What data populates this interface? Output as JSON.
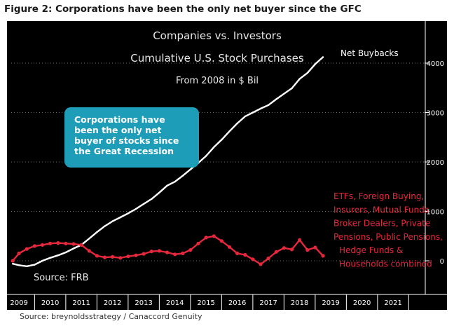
{
  "figure_title": "Figure 2: Corporations have been the only net buyer since the GFC",
  "source_note": "Source: breynoldsstrategy / Canaccord Genuity",
  "callout": {
    "lines": [
      "Corporations have",
      "been the only net",
      "buyer of stocks since",
      "the Great Recession"
    ],
    "color": "#1e9db8"
  },
  "chart_data": {
    "type": "line",
    "title": "Companies vs. Investors",
    "subtitle": "Cumulative U.S. Stock Purchases",
    "subtitle2": "From 2008 in $ Bil",
    "source_label": "Source: FRB",
    "x_ticks": [
      "2009",
      "2010",
      "2011",
      "2012",
      "2013",
      "2014",
      "2015",
      "2016",
      "2017",
      "2018",
      "2019",
      "2020",
      "2021"
    ],
    "y_ticks": [
      0,
      1000,
      2000,
      3000,
      4000
    ],
    "xlim": [
      2008.75,
      2021.8
    ],
    "ylim": [
      -550,
      4400
    ],
    "background": "#000000",
    "series": [
      {
        "name": "Net Buybacks",
        "color": "#ffffff",
        "x": [
          2008.8,
          2009.0,
          2009.25,
          2009.5,
          2009.75,
          2010.0,
          2010.25,
          2010.5,
          2010.75,
          2011.0,
          2011.25,
          2011.5,
          2011.75,
          2012.0,
          2012.25,
          2012.5,
          2012.75,
          2013.0,
          2013.25,
          2013.5,
          2013.75,
          2014.0,
          2014.25,
          2014.5,
          2014.75,
          2015.0,
          2015.25,
          2015.5,
          2015.75,
          2016.0,
          2016.25,
          2016.5,
          2016.75,
          2017.0,
          2017.25,
          2017.5,
          2017.75,
          2018.0,
          2018.25,
          2018.5,
          2018.75
        ],
        "y": [
          -60,
          -90,
          -110,
          -80,
          0,
          60,
          110,
          170,
          250,
          320,
          450,
          580,
          700,
          800,
          880,
          960,
          1050,
          1150,
          1250,
          1380,
          1520,
          1600,
          1720,
          1850,
          1980,
          2120,
          2300,
          2450,
          2620,
          2780,
          2920,
          3000,
          3080,
          3150,
          3270,
          3380,
          3490,
          3680,
          3800,
          3980,
          4120
        ]
      },
      {
        "name": "ETFs, Foreign Buying, Insurers, Mutual Funds Broker Dealers, Private Pensions, Public Pensions, Hedge Funds & Households combined",
        "label_lines": [
          "ETFs, Foreign Buying,",
          "Insurers, Mutual Funds",
          "Broker Dealers, Private",
          "Pensions, Public Pensions,",
          "Hedge Funds &",
          "Households combined"
        ],
        "color": "#e6283c",
        "x": [
          2008.8,
          2009.0,
          2009.25,
          2009.5,
          2009.75,
          2010.0,
          2010.25,
          2010.5,
          2010.75,
          2011.0,
          2011.25,
          2011.5,
          2011.75,
          2012.0,
          2012.25,
          2012.5,
          2012.75,
          2013.0,
          2013.25,
          2013.5,
          2013.75,
          2014.0,
          2014.25,
          2014.5,
          2014.75,
          2015.0,
          2015.25,
          2015.5,
          2015.75,
          2016.0,
          2016.25,
          2016.5,
          2016.75,
          2017.0,
          2017.25,
          2017.5,
          2017.75,
          2018.0,
          2018.25,
          2018.5,
          2018.75
        ],
        "y": [
          0,
          150,
          240,
          300,
          320,
          350,
          360,
          350,
          340,
          320,
          200,
          100,
          70,
          80,
          60,
          90,
          110,
          140,
          190,
          200,
          170,
          130,
          150,
          220,
          350,
          470,
          500,
          400,
          280,
          150,
          120,
          30,
          -70,
          50,
          180,
          260,
          230,
          420,
          220,
          270,
          100
        ]
      }
    ]
  }
}
